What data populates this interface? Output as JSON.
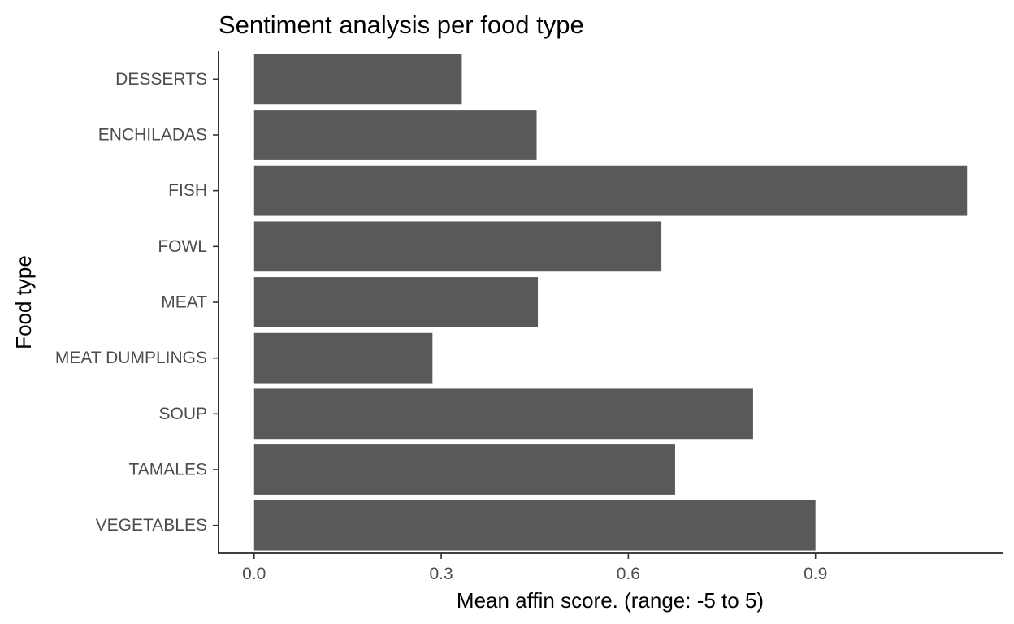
{
  "chart_data": {
    "type": "bar",
    "orientation": "horizontal",
    "title": "Sentiment analysis per food type",
    "xlabel": "Mean affin score. (range: -5 to 5)",
    "ylabel": "Food type",
    "categories": [
      "DESSERTS",
      "ENCHILADAS",
      "FISH",
      "FOWL",
      "MEAT",
      "MEAT DUMPLINGS",
      "SOUP",
      "TAMALES",
      "VEGETABLES"
    ],
    "values": [
      0.333,
      0.453,
      1.143,
      0.653,
      0.455,
      0.286,
      0.8,
      0.675,
      0.9
    ],
    "xticks": [
      "0.0",
      "0.3",
      "0.6",
      "0.9"
    ],
    "xtick_values": [
      0.0,
      0.3,
      0.6,
      0.9
    ],
    "xlim": [
      -0.057,
      1.2
    ],
    "bar_color": "#595959",
    "grid": false,
    "legend": "none"
  }
}
